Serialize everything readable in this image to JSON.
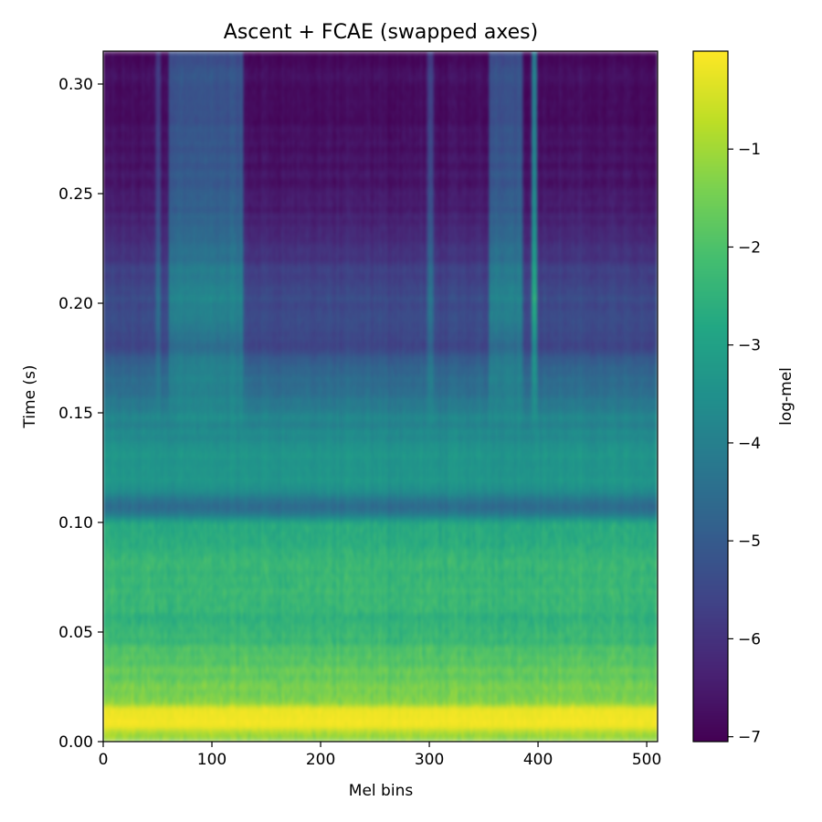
{
  "chart_data": {
    "type": "heatmap",
    "title": "Ascent + FCAE (swapped axes)",
    "xlabel": "Mel bins",
    "ylabel": "Time (s)",
    "xlim": [
      0,
      510
    ],
    "ylim": [
      0.0,
      0.315
    ],
    "x_ticks": [
      0,
      100,
      200,
      300,
      400,
      500
    ],
    "x_tick_labels": [
      "0",
      "100",
      "200",
      "300",
      "400",
      "500"
    ],
    "y_ticks": [
      0.0,
      0.05,
      0.1,
      0.15,
      0.2,
      0.25,
      0.3
    ],
    "y_tick_labels": [
      "0.00",
      "0.05",
      "0.10",
      "0.15",
      "0.20",
      "0.25",
      "0.30"
    ],
    "colormap": "viridis",
    "colorbar": {
      "label": "log-mel",
      "vmin": -7.05,
      "vmax": 0.0,
      "ticks": [
        -1,
        -2,
        -3,
        -4,
        -5,
        -6,
        -7
      ],
      "tick_labels": [
        "−1",
        "−2",
        "−3",
        "−4",
        "−5",
        "−6",
        "−7"
      ]
    },
    "time_profile": [
      {
        "t": 0.0,
        "v": -1.2
      },
      {
        "t": 0.004,
        "v": -1.0
      },
      {
        "t": 0.008,
        "v": -0.15
      },
      {
        "t": 0.015,
        "v": -0.1
      },
      {
        "t": 0.017,
        "v": -1.3
      },
      {
        "t": 0.03,
        "v": -1.6
      },
      {
        "t": 0.045,
        "v": -2.2
      },
      {
        "t": 0.06,
        "v": -2.5
      },
      {
        "t": 0.08,
        "v": -2.3
      },
      {
        "t": 0.1,
        "v": -2.8
      },
      {
        "t": 0.105,
        "v": -4.6
      },
      {
        "t": 0.11,
        "v": -4.4
      },
      {
        "t": 0.115,
        "v": -3.4
      },
      {
        "t": 0.13,
        "v": -3.4
      },
      {
        "t": 0.15,
        "v": -4.0
      },
      {
        "t": 0.175,
        "v": -5.0
      },
      {
        "t": 0.18,
        "v": -5.6
      },
      {
        "t": 0.2,
        "v": -5.4
      },
      {
        "t": 0.23,
        "v": -6.2
      },
      {
        "t": 0.26,
        "v": -6.7
      },
      {
        "t": 0.315,
        "v": -6.9
      }
    ],
    "bright_bands_mel": [
      {
        "from": 48,
        "to": 52,
        "boost": 1.0
      },
      {
        "from": 60,
        "to": 128,
        "boost": 1.6
      },
      {
        "from": 298,
        "to": 303,
        "boost": 1.1
      },
      {
        "from": 355,
        "to": 385,
        "boost": 1.6
      },
      {
        "from": 394,
        "to": 398,
        "boost": 2.8
      }
    ]
  }
}
